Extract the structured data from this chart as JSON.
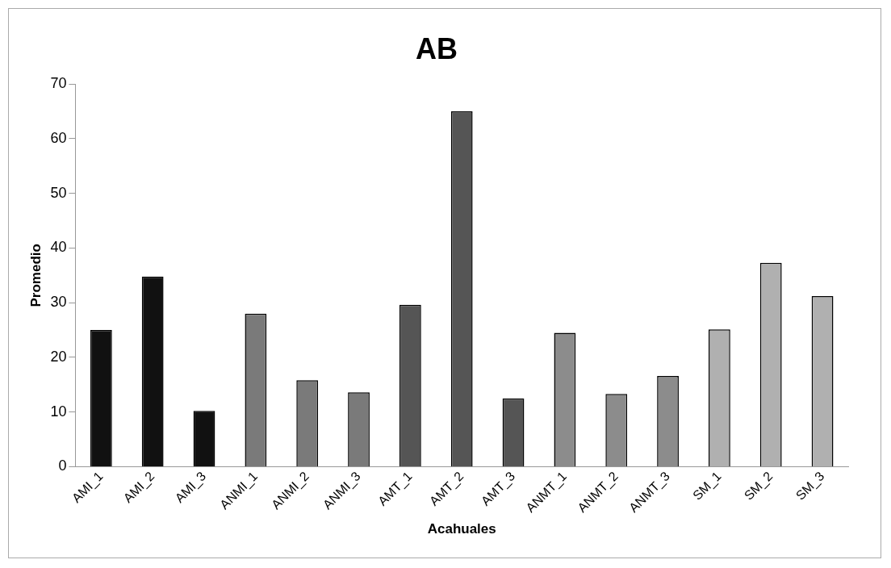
{
  "chart_data": {
    "type": "bar",
    "title": "AB",
    "xlabel": "Acahuales",
    "ylabel": "Promedio",
    "categories": [
      "AMI_1",
      "AMI_2",
      "AMI_3",
      "ANMI_1",
      "ANMI_2",
      "ANMI_3",
      "AMT_1",
      "AMT_2",
      "AMT_3",
      "ANMT_1",
      "ANMT_2",
      "ANMT_3",
      "SM_1",
      "SM_2",
      "SM_3"
    ],
    "values": [
      25,
      34.8,
      10.2,
      28,
      15.8,
      13.6,
      29.6,
      65,
      12.5,
      24.5,
      13.3,
      16.6,
      25.1,
      37.3,
      31.2
    ],
    "colors": [
      "#111111",
      "#111111",
      "#111111",
      "#7a7a7a",
      "#7a7a7a",
      "#7a7a7a",
      "#555555",
      "#555555",
      "#555555",
      "#8c8c8c",
      "#8c8c8c",
      "#8c8c8c",
      "#b0b0b0",
      "#b0b0b0",
      "#b0b0b0"
    ],
    "ylim": [
      0,
      70
    ],
    "yticks": [
      0,
      10,
      20,
      30,
      40,
      50,
      60,
      70
    ],
    "grid": false,
    "legend": false
  }
}
